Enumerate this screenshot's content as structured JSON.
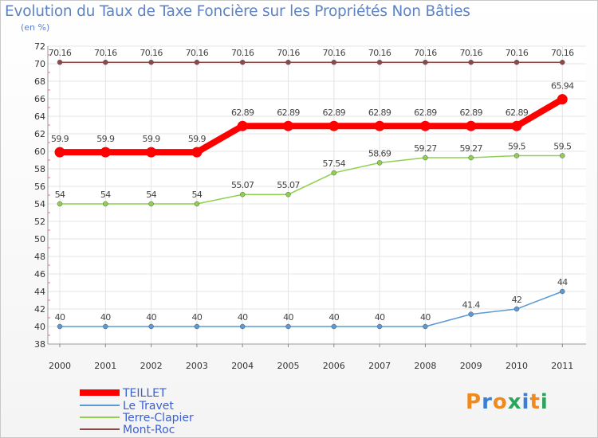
{
  "title": "Evolution du Taux de Taxe Foncière sur les Propriétés Non Bâties",
  "unit_label": "(en %)",
  "logo": {
    "text": "Proxiti",
    "colors": [
      "#f08a1c",
      "#3a7fd0",
      "#f08a1c",
      "#2aa55a",
      "#3a7fd0",
      "#f08a1c",
      "#2aa55a"
    ]
  },
  "chart_data": {
    "type": "line",
    "x": [
      "2000",
      "2001",
      "2002",
      "2003",
      "2004",
      "2005",
      "2006",
      "2007",
      "2008",
      "2009",
      "2010",
      "2011"
    ],
    "ylim": [
      38,
      72
    ],
    "yticks": [
      38,
      40,
      42,
      44,
      46,
      48,
      50,
      52,
      54,
      56,
      58,
      60,
      62,
      64,
      66,
      68,
      70,
      72
    ],
    "grid": true,
    "legend_position": "bottom-left",
    "series": [
      {
        "name": "TEILLET",
        "color": "#ff0000",
        "style": "thick",
        "values": [
          59.9,
          59.9,
          59.9,
          59.9,
          62.89,
          62.89,
          62.89,
          62.89,
          62.89,
          62.89,
          62.89,
          65.94
        ],
        "labels": [
          "59.9",
          "59.9",
          "59.9",
          "59.9",
          "62.89",
          "62.89",
          "62.89",
          "62.89",
          "62.89",
          "62.89",
          "62.89",
          "65.94"
        ]
      },
      {
        "name": "Le Travet",
        "color": "#5a9ad6",
        "style": "thin",
        "values": [
          40,
          40,
          40,
          40,
          40,
          40,
          40,
          40,
          40,
          41.4,
          42,
          44
        ],
        "labels": [
          "40",
          "40",
          "40",
          "40",
          "40",
          "40",
          "40",
          "40",
          "40",
          "41.4",
          "42",
          "44"
        ]
      },
      {
        "name": "Terre-Clapier",
        "color": "#8fd14f",
        "style": "thin",
        "values": [
          54,
          54,
          54,
          54,
          55.07,
          55.07,
          57.54,
          58.69,
          59.27,
          59.27,
          59.5,
          59.5
        ],
        "labels": [
          "54",
          "54",
          "54",
          "54",
          "55.07",
          "55.07",
          "57.54",
          "58.69",
          "59.27",
          "59.27",
          "59.5",
          "59.5"
        ]
      },
      {
        "name": "Mont-Roc",
        "color": "#8b4a4a",
        "style": "thin",
        "values": [
          70.16,
          70.16,
          70.16,
          70.16,
          70.16,
          70.16,
          70.16,
          70.16,
          70.16,
          70.16,
          70.16,
          70.16
        ],
        "labels": [
          "70.16",
          "70.16",
          "70.16",
          "70.16",
          "70.16",
          "70.16",
          "70.16",
          "70.16",
          "70.16",
          "70.16",
          "70.16",
          "70.16"
        ]
      }
    ]
  }
}
